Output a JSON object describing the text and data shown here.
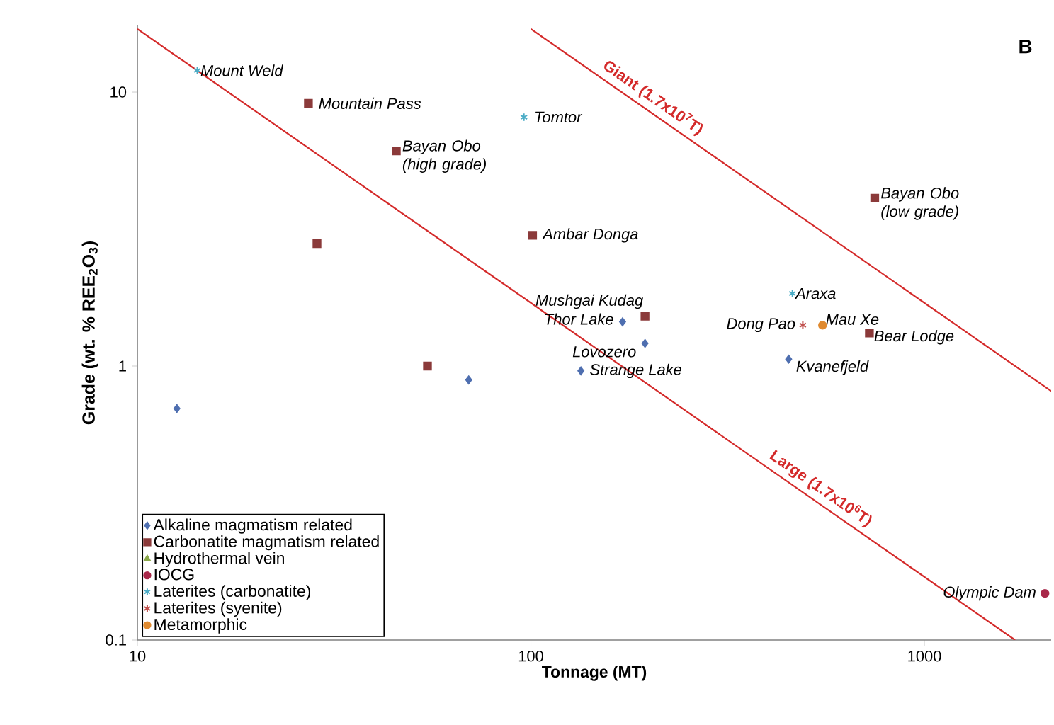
{
  "chart_data": {
    "type": "scatter",
    "xlabel": "Tonnage (MT)",
    "ylabel": "Grade (wt. % REE$_{2}$O$_{3}$)",
    "log": "xy",
    "xlim": [
      10,
      2100
    ],
    "ylim": [
      0.1,
      17.5
    ],
    "xticks": [
      10,
      100,
      1000
    ],
    "yticks": [
      0.1,
      1,
      10
    ],
    "grid": false,
    "legend": "bottom left",
    "series": [
      {
        "name": "Alkaline magmatism related",
        "color": "#4f6fb0",
        "marker": "diamond",
        "x": [
          171,
          195,
          452,
          134,
          69.5,
          12.6
        ],
        "values": [
          1.45,
          1.21,
          1.06,
          0.96,
          0.89,
          0.7
        ]
      },
      {
        "name": "Carbonatite magmatism related",
        "color": "#8b3a3a",
        "marker": "square",
        "x": [
          27.2,
          45.5,
          101,
          28.6,
          748,
          195,
          725,
          54.6
        ],
        "values": [
          9.1,
          6.1,
          3.0,
          2.8,
          4.1,
          1.52,
          1.32,
          1.0
        ]
      },
      {
        "name": "Hydrothermal vein",
        "color": "#8aa84a",
        "marker": "triangle"
      },
      {
        "name": "IOCG",
        "color": "#a8284a",
        "marker": "circle",
        "x": [
          2025
        ],
        "values": [
          0.148
        ]
      },
      {
        "name": "Laterites (carbonatite)",
        "color": "#4bacc6",
        "marker": "cross",
        "x": [
          14.2,
          96,
          462
        ],
        "values": [
          12.0,
          8.1,
          1.84
        ]
      },
      {
        "name": "Laterites (syenite)",
        "color": "#c0504d",
        "marker": "cross",
        "x": [
          491
        ],
        "values": [
          1.41
        ]
      },
      {
        "name": "Metamorphic",
        "color": "#e08a30",
        "marker": "circle",
        "x": [
          551
        ],
        "values": [
          1.41
        ]
      },
      {
        "name": "Large (1.7x10$^{6}$T)",
        "type": "line",
        "color": "#d42a2a",
        "marker": "none",
        "x": [
          10,
          1700
        ],
        "values": [
          17,
          0.1
        ]
      },
      {
        "name": "Giant (1.7x10$^{7}$T)",
        "type": "line",
        "color": "#d42a2a",
        "marker": "none",
        "x": [
          100,
          2100
        ],
        "values": [
          17,
          0.81
        ]
      }
    ],
    "annotations": [
      {
        "text": "Mount Weld",
        "x": 14.2,
        "y": 12.0
      },
      {
        "text": "Mountain Pass",
        "x": 27.2,
        "y": 9.1
      },
      {
        "text": "Tomtor",
        "x": 96,
        "y": 8.1
      },
      {
        "text": "Bayan Obo (high grade)",
        "x": 45.5,
        "y": 6.1
      },
      {
        "text": "Ambar Donga",
        "x": 101,
        "y": 3.0
      },
      {
        "text": "Bayan Obo (low grade)",
        "x": 748,
        "y": 4.1
      },
      {
        "text": "Mushgai Kudag",
        "x": 195,
        "y": 1.52
      },
      {
        "text": "Araxa",
        "x": 462,
        "y": 1.84
      },
      {
        "text": "Thor Lake",
        "x": 171,
        "y": 1.45
      },
      {
        "text": "Dong Pao",
        "x": 491,
        "y": 1.41
      },
      {
        "text": "Mau Xe",
        "x": 551,
        "y": 1.41
      },
      {
        "text": "Bear Lodge",
        "x": 725,
        "y": 1.32
      },
      {
        "text": "Lovozero",
        "x": 195,
        "y": 1.21
      },
      {
        "text": "Strange Lake",
        "x": 134,
        "y": 0.96
      },
      {
        "text": "Kvanefjeld",
        "x": 452,
        "y": 1.06
      },
      {
        "text": "Olympic Dam",
        "x": 2025,
        "y": 0.148
      },
      "B"
    ]
  }
}
